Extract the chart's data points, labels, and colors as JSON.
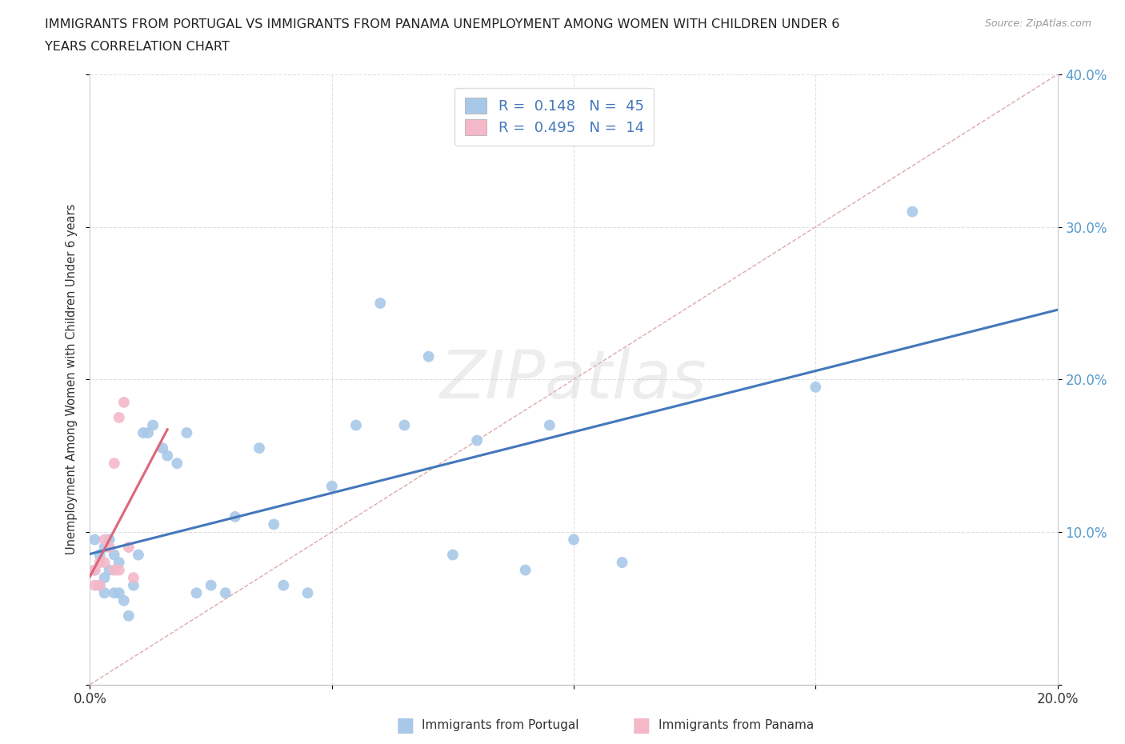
{
  "title_line1": "IMMIGRANTS FROM PORTUGAL VS IMMIGRANTS FROM PANAMA UNEMPLOYMENT AMONG WOMEN WITH CHILDREN UNDER 6",
  "title_line2": "YEARS CORRELATION CHART",
  "source": "Source: ZipAtlas.com",
  "ylabel": "Unemployment Among Women with Children Under 6 years",
  "xlim": [
    0.0,
    0.2
  ],
  "ylim": [
    0.0,
    0.4
  ],
  "portugal_r": 0.148,
  "portugal_n": 45,
  "panama_r": 0.495,
  "panama_n": 14,
  "portugal_color": "#a8c8e8",
  "panama_color": "#f4b8c8",
  "portugal_line_color": "#4477bb",
  "panama_line_color": "#dd6677",
  "diag_line_color": "#ddaaaa",
  "background_color": "#ffffff",
  "portugal_x": [
    0.001,
    0.001,
    0.002,
    0.002,
    0.003,
    0.003,
    0.003,
    0.004,
    0.004,
    0.005,
    0.005,
    0.006,
    0.006,
    0.007,
    0.008,
    0.009,
    0.01,
    0.011,
    0.012,
    0.013,
    0.015,
    0.016,
    0.018,
    0.02,
    0.022,
    0.025,
    0.028,
    0.03,
    0.035,
    0.038,
    0.04,
    0.045,
    0.05,
    0.055,
    0.06,
    0.065,
    0.07,
    0.075,
    0.08,
    0.09,
    0.095,
    0.1,
    0.11,
    0.15,
    0.17
  ],
  "portugal_y": [
    0.095,
    0.075,
    0.085,
    0.065,
    0.09,
    0.07,
    0.06,
    0.095,
    0.075,
    0.085,
    0.06,
    0.08,
    0.06,
    0.055,
    0.045,
    0.065,
    0.085,
    0.165,
    0.165,
    0.17,
    0.155,
    0.15,
    0.145,
    0.165,
    0.06,
    0.065,
    0.06,
    0.11,
    0.155,
    0.105,
    0.065,
    0.06,
    0.13,
    0.17,
    0.25,
    0.17,
    0.215,
    0.085,
    0.16,
    0.075,
    0.17,
    0.095,
    0.08,
    0.195,
    0.31
  ],
  "panama_x": [
    0.001,
    0.001,
    0.002,
    0.002,
    0.003,
    0.003,
    0.004,
    0.005,
    0.005,
    0.006,
    0.006,
    0.007,
    0.008,
    0.009
  ],
  "panama_y": [
    0.065,
    0.075,
    0.065,
    0.08,
    0.08,
    0.095,
    0.09,
    0.075,
    0.145,
    0.075,
    0.175,
    0.185,
    0.09,
    0.07
  ]
}
